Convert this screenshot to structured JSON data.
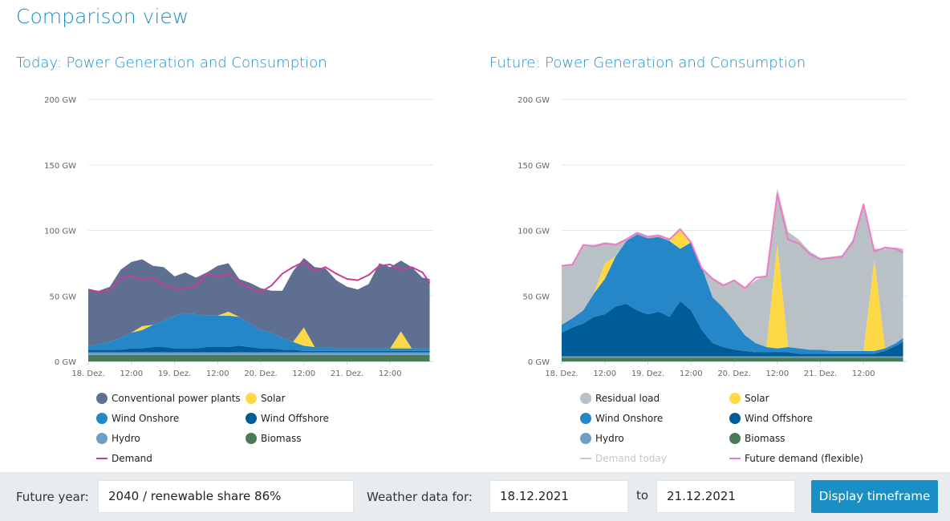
{
  "page": {
    "title": "Comparison view"
  },
  "colors": {
    "conventional": "#5f6f92",
    "solar": "#fed945",
    "wind_onshore": "#2586c8",
    "wind_offshore": "#005c96",
    "hydro": "#6d9ec6",
    "biomass": "#4b7a56",
    "demand": "#c53f98",
    "residual": "#b9c0c6",
    "future_demand": "#f07ac8",
    "demand_today": "#c4c8cc",
    "accent": "#1a8fc6"
  },
  "charts": {
    "today": {
      "title": "Today: Power Generation and Consumption",
      "legend": [
        {
          "label": "Conventional power plants",
          "icon": "dot",
          "color": "#5f6f92"
        },
        {
          "label": "Solar",
          "icon": "dot",
          "color": "#fed945"
        },
        {
          "label": "Wind Onshore",
          "icon": "dot",
          "color": "#2586c8"
        },
        {
          "label": "Wind Offshore",
          "icon": "dot",
          "color": "#005c96"
        },
        {
          "label": "Hydro",
          "icon": "dot",
          "color": "#6d9ec6"
        },
        {
          "label": "Biomass",
          "icon": "dot",
          "color": "#4b7a56"
        },
        {
          "label": "Demand",
          "icon": "line",
          "color": "#c53f98"
        }
      ]
    },
    "future": {
      "title": "Future: Power Generation and Consumption",
      "legend": [
        {
          "label": "Residual load",
          "icon": "dot",
          "color": "#b9c0c6"
        },
        {
          "label": "Solar",
          "icon": "dot",
          "color": "#fed945"
        },
        {
          "label": "Wind Onshore",
          "icon": "dot",
          "color": "#2586c8"
        },
        {
          "label": "Wind Offshore",
          "icon": "dot",
          "color": "#005c96"
        },
        {
          "label": "Hydro",
          "icon": "dot",
          "color": "#6d9ec6"
        },
        {
          "label": "Biomass",
          "icon": "dot",
          "color": "#4b7a56"
        },
        {
          "label": "Demand today",
          "icon": "line",
          "color": "#c4c8cc",
          "muted": true
        },
        {
          "label": "Future demand (flexible)",
          "icon": "line",
          "color": "#f07ac8"
        }
      ]
    }
  },
  "chart_data": [
    {
      "type": "area",
      "title": "Today: Power Generation and Consumption",
      "x": [
        0,
        3,
        6,
        9,
        12,
        15,
        18,
        21,
        24,
        27,
        30,
        33,
        36,
        39,
        42,
        45,
        48,
        51,
        54,
        57,
        60,
        63,
        66,
        69,
        72,
        75,
        78,
        81,
        84,
        87,
        90,
        93,
        95
      ],
      "x_tick_labels": [
        "18. Dez.",
        "12:00",
        "19. Dez.",
        "12:00",
        "20. Dez.",
        "12:00",
        "21. Dez.",
        "12:00"
      ],
      "x_tick_hours": [
        0,
        12,
        24,
        36,
        48,
        60,
        72,
        84
      ],
      "y_tick_labels": [
        "0 GW",
        "50 GW",
        "100 GW",
        "150 GW",
        "200 GW"
      ],
      "ylim": [
        0,
        200
      ],
      "grid": true,
      "series": [
        {
          "name": "Biomass",
          "key": "biomass",
          "values": [
            5,
            5,
            5,
            5,
            5,
            5,
            5,
            5,
            5,
            5,
            5,
            5,
            5,
            5,
            5,
            5,
            5,
            5,
            5,
            5,
            5,
            5,
            5,
            5,
            5,
            5,
            5,
            5,
            5,
            5,
            5,
            5,
            5
          ]
        },
        {
          "name": "Hydro",
          "key": "hydro",
          "values": [
            2,
            2,
            2,
            2,
            2,
            2,
            2,
            2,
            2,
            2,
            2,
            2,
            2,
            2,
            2,
            2,
            2,
            2,
            2,
            2,
            2,
            2,
            2,
            2,
            2,
            2,
            2,
            2,
            2,
            2,
            2,
            2,
            2
          ]
        },
        {
          "name": "Wind Offshore",
          "key": "wind_offshore",
          "values": [
            2,
            2,
            2,
            2,
            3,
            3,
            4,
            4,
            3,
            3,
            3,
            4,
            4,
            4,
            5,
            4,
            3,
            3,
            2,
            2,
            1,
            1,
            1,
            1,
            1,
            1,
            1,
            1,
            1,
            1,
            1,
            1,
            1
          ]
        },
        {
          "name": "Wind Onshore",
          "key": "wind_onshore",
          "values": [
            3,
            4,
            6,
            9,
            12,
            14,
            17,
            20,
            25,
            27,
            26,
            24,
            24,
            24,
            22,
            18,
            14,
            12,
            9,
            6,
            4,
            3,
            3,
            2,
            2,
            2,
            2,
            2,
            2,
            2,
            2,
            2,
            2
          ]
        },
        {
          "name": "Solar",
          "key": "solar",
          "values": [
            0,
            0,
            0,
            0,
            0,
            3,
            0,
            0,
            0,
            0,
            0,
            0,
            0,
            3,
            0,
            0,
            0,
            0,
            0,
            0,
            14,
            0,
            0,
            0,
            0,
            0,
            0,
            0,
            0,
            13,
            0,
            0,
            0
          ]
        },
        {
          "name": "Conventional power plants",
          "key": "conventional",
          "values": [
            43,
            41,
            42,
            52,
            54,
            51,
            45,
            41,
            30,
            31,
            28,
            33,
            38,
            37,
            29,
            31,
            32,
            32,
            36,
            54,
            53,
            61,
            60,
            52,
            47,
            45,
            49,
            65,
            62,
            54,
            62,
            54,
            53
          ]
        }
      ],
      "demand": {
        "name": "Demand",
        "values": [
          55,
          53,
          54,
          64,
          65,
          63,
          64,
          58,
          56,
          55,
          58,
          67,
          65,
          67,
          60,
          56,
          53,
          58,
          67,
          72,
          76,
          69,
          72,
          67,
          63,
          62,
          66,
          73,
          74,
          70,
          72,
          68,
          60
        ]
      }
    },
    {
      "type": "area",
      "title": "Future: Power Generation and Consumption",
      "x": [
        0,
        3,
        6,
        9,
        12,
        15,
        18,
        21,
        24,
        27,
        30,
        33,
        36,
        39,
        42,
        45,
        48,
        51,
        54,
        57,
        60,
        63,
        66,
        69,
        72,
        75,
        78,
        81,
        84,
        87,
        90,
        93,
        95
      ],
      "x_tick_labels": [
        "18. Dez.",
        "12:00",
        "19. Dez.",
        "12:00",
        "20. Dez.",
        "12:00",
        "21. Dez.",
        "12:00"
      ],
      "x_tick_hours": [
        0,
        12,
        24,
        36,
        48,
        60,
        72,
        84
      ],
      "y_tick_labels": [
        "0 GW",
        "50 GW",
        "100 GW",
        "150 GW",
        "200 GW"
      ],
      "ylim": [
        0,
        200
      ],
      "grid": true,
      "series": [
        {
          "name": "Biomass",
          "key": "biomass",
          "values": [
            3,
            3,
            3,
            3,
            3,
            3,
            3,
            3,
            3,
            3,
            3,
            3,
            3,
            3,
            3,
            3,
            3,
            3,
            3,
            3,
            3,
            3,
            3,
            3,
            3,
            3,
            3,
            3,
            3,
            3,
            3,
            3,
            3
          ]
        },
        {
          "name": "Hydro",
          "key": "hydro",
          "values": [
            1,
            1,
            1,
            1,
            1,
            1,
            1,
            1,
            1,
            1,
            1,
            1,
            1,
            1,
            1,
            1,
            1,
            1,
            1,
            1,
            1,
            1,
            1,
            1,
            1,
            1,
            1,
            1,
            1,
            1,
            1,
            1,
            1
          ]
        },
        {
          "name": "Wind Offshore",
          "key": "wind_offshore",
          "values": [
            18,
            22,
            25,
            30,
            32,
            38,
            40,
            35,
            32,
            34,
            30,
            42,
            35,
            20,
            10,
            7,
            5,
            4,
            3,
            3,
            3,
            3,
            2,
            2,
            2,
            2,
            2,
            2,
            2,
            2,
            4,
            8,
            11
          ]
        },
        {
          "name": "Wind Onshore",
          "key": "wind_onshore",
          "values": [
            6,
            7,
            10,
            18,
            27,
            38,
            48,
            58,
            58,
            57,
            58,
            40,
            52,
            48,
            35,
            30,
            22,
            12,
            7,
            4,
            3,
            4,
            4,
            3,
            3,
            2,
            2,
            2,
            2,
            2,
            2,
            2,
            3
          ]
        },
        {
          "name": "Solar",
          "key": "solar",
          "values": [
            0,
            0,
            0,
            0,
            12,
            0,
            0,
            0,
            0,
            0,
            0,
            16,
            0,
            0,
            0,
            0,
            0,
            0,
            0,
            0,
            80,
            0,
            0,
            0,
            0,
            0,
            0,
            0,
            0,
            70,
            0,
            0,
            0
          ]
        },
        {
          "name": "Residual load",
          "key": "residual",
          "values": [
            45,
            41,
            50,
            37,
            16,
            10,
            2,
            2,
            2,
            2,
            2,
            0,
            0,
            0,
            15,
            18,
            31,
            36,
            48,
            55,
            42,
            88,
            83,
            75,
            70,
            72,
            73,
            85,
            112,
            8,
            76,
            73,
            68
          ]
        }
      ],
      "future_demand": {
        "name": "Future demand (flexible)",
        "values": [
          73,
          74,
          89,
          88,
          90,
          89,
          93,
          98,
          95,
          96,
          93,
          101,
          91,
          71,
          63,
          58,
          62,
          56,
          64,
          65,
          128,
          93,
          90,
          82,
          78,
          79,
          80,
          91,
          120,
          84,
          87,
          86,
          83
        ]
      },
      "demand_today": {
        "name": "Demand today"
      }
    }
  ],
  "footer": {
    "future_year_label": "Future year:",
    "future_year_value": "2040 / renewable share 86%",
    "weather_label": "Weather data for:",
    "date_from": "18.12.2021",
    "to_label": "to",
    "date_to": "21.12.2021",
    "display_button": "Display timeframe"
  }
}
